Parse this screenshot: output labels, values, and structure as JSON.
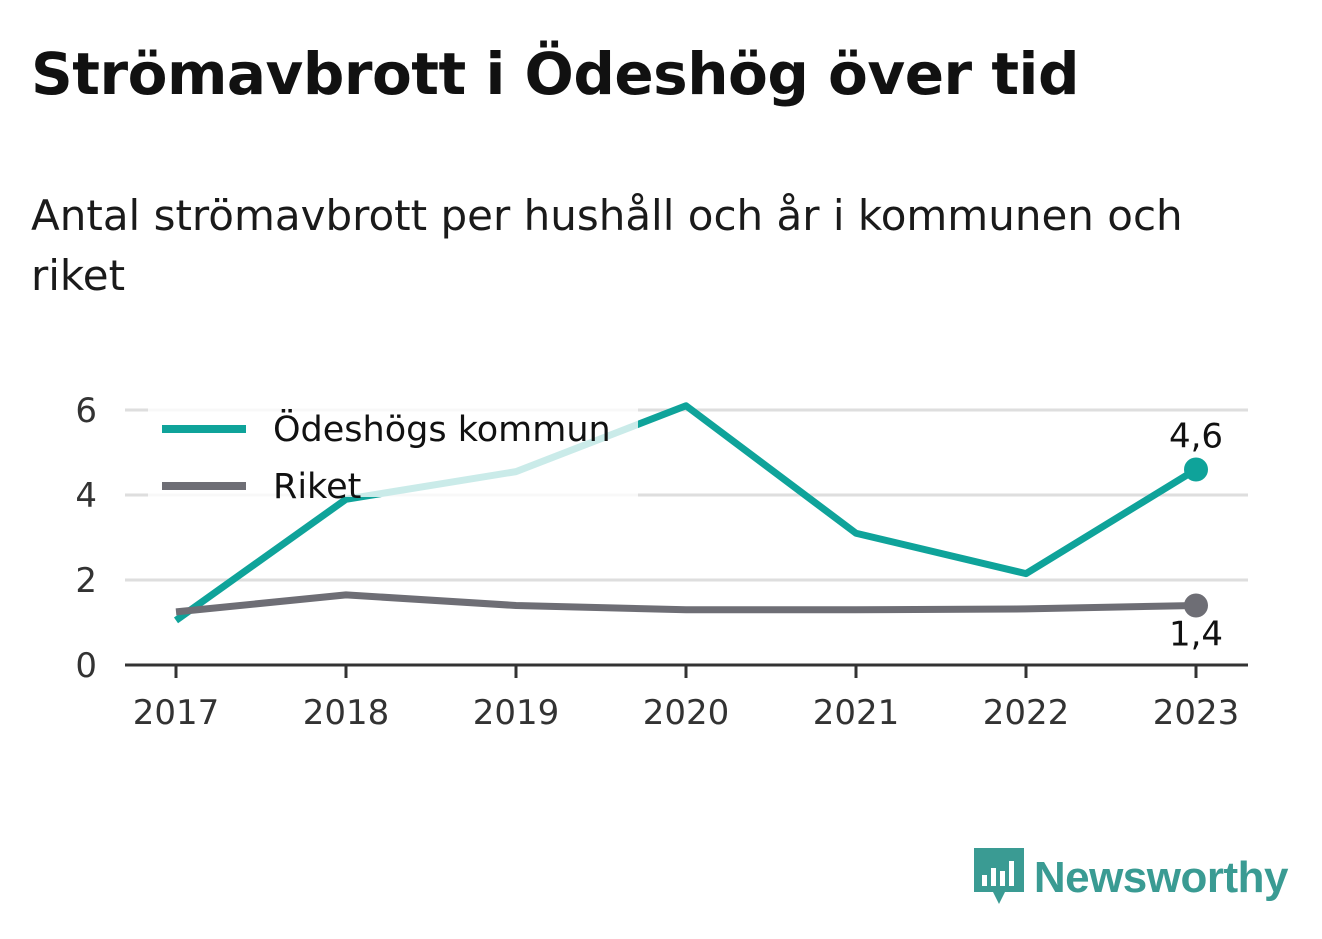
{
  "title": "Strömavbrott i Ödeshög över tid",
  "subtitle": "Antal strömavbrott per hushåll och år i kommunen och riket",
  "brand": {
    "name": "Newsworthy",
    "logo_icon": "newsworthy-logo-icon"
  },
  "colors": {
    "kommun": "#0fa39a",
    "riket": "#6e6e75",
    "grid": "#dedede",
    "axis": "#333333"
  },
  "chart_data": {
    "type": "line",
    "title": "Strömavbrott i Ödeshög över tid",
    "subtitle": "Antal strömavbrott per hushåll och år i kommunen och riket",
    "x": [
      "2017",
      "2018",
      "2019",
      "2020",
      "2021",
      "2022",
      "2023"
    ],
    "ylim": [
      0,
      6
    ],
    "yticks": [
      "0",
      "2",
      "4",
      "6"
    ],
    "grid": true,
    "legend_position": "top-left",
    "series": [
      {
        "name": "Ödeshögs kommun",
        "values": [
          1.05,
          3.9,
          4.55,
          6.1,
          3.1,
          2.15,
          4.6
        ],
        "color": "#0fa39a",
        "end_label": "4,6"
      },
      {
        "name": "Riket",
        "values": [
          1.25,
          1.65,
          1.4,
          1.3,
          1.3,
          1.32,
          1.4
        ],
        "color": "#6e6e75",
        "end_label": "1,4"
      }
    ]
  }
}
